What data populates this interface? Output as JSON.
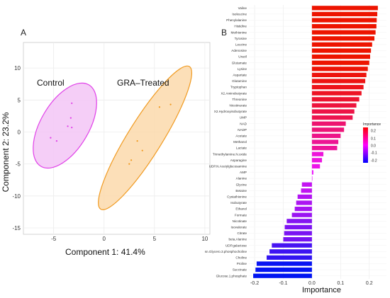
{
  "chart_data": [
    {
      "type": "scatter",
      "panel": "A",
      "xlabel": "Component 1: 41.4%",
      "ylabel": "Component 2: 23.2%",
      "xlim": [
        -8,
        10.5
      ],
      "ylim": [
        -16,
        14
      ],
      "xticks": [
        -5,
        0,
        5,
        10
      ],
      "yticks": [
        10,
        5,
        0,
        -5,
        -10,
        -15
      ],
      "grid": true,
      "groups": [
        {
          "name": "Control",
          "color": "#e040e8",
          "fill": "#f3c6f6",
          "points": [
            [
              -3.2,
              4.5
            ],
            [
              -3.3,
              2.2
            ],
            [
              -3.6,
              0.9
            ],
            [
              -3.2,
              0.7
            ],
            [
              -5.3,
              -0.9
            ],
            [
              -4.7,
              -1.4
            ]
          ]
        },
        {
          "name": "GRA–Treated",
          "color": "#f09a20",
          "fill": "#fbd9ab",
          "points": [
            [
              6.6,
              4.3
            ],
            [
              5.5,
              3.9
            ],
            [
              3.3,
              -1.4
            ],
            [
              3.8,
              -2.9
            ],
            [
              2.7,
              -4.4
            ],
            [
              2.5,
              -5.0
            ]
          ]
        }
      ]
    },
    {
      "type": "bar",
      "orientation": "horizontal",
      "panel": "B",
      "xlabel": "Importance",
      "xlim": [
        -0.22,
        0.26
      ],
      "xticks": [
        -0.2,
        -0.1,
        0.0,
        0.1,
        0.2
      ],
      "xtick_labels": [
        "-0.2",
        "-0.1",
        "0.0",
        "0.1",
        "0.2"
      ],
      "legend": {
        "title": "Importance",
        "labels": [
          "0.2",
          "0.1",
          "0.0",
          "-0.1",
          "-0.2"
        ],
        "placement": "right"
      },
      "categories": [
        "Valine",
        "Isoleucine",
        "Phenylalanine",
        "Histidine",
        "Methionine",
        "Tyrosine",
        "Leucine",
        "Adenosine",
        "Uracil",
        "Glutamate",
        "Lysine",
        "Aspartate",
        "Glutamine",
        "Tryptophan",
        "X2.Aminobutyrate",
        "Threonine",
        "Nicotinurate",
        "X2.Hydroxyisobutyrate",
        "UMP",
        "NAD",
        "NADP",
        "Acetate",
        "Methanol",
        "Lactate",
        "Trimethylamine.N.oxide",
        "Asparagine",
        "UDP.N.Acetylglucosamine",
        "AMP",
        "Alanine",
        "Glycine",
        "Betaine",
        "Cystathionine",
        "Isobutyrate",
        "Ethanol",
        "Formate",
        "Nicotinate",
        "Isovalerate",
        "Citrate",
        "beta.Alanine",
        "UDP.galactose",
        "sn.Glycero.3.phosphocholine",
        "Choline",
        "Proline",
        "Succinate",
        "Glucose.1.phosphate"
      ],
      "values": [
        0.23,
        0.228,
        0.226,
        0.225,
        0.222,
        0.218,
        0.21,
        0.206,
        0.203,
        0.2,
        0.195,
        0.19,
        0.186,
        0.18,
        0.173,
        0.165,
        0.155,
        0.148,
        0.142,
        0.118,
        0.112,
        0.1,
        0.092,
        0.088,
        0.04,
        0.035,
        0.028,
        0.005,
        0.0,
        -0.035,
        -0.038,
        -0.05,
        -0.055,
        -0.06,
        -0.07,
        -0.088,
        -0.095,
        -0.097,
        -0.1,
        -0.14,
        -0.148,
        -0.158,
        -0.193,
        -0.197,
        -0.205
      ]
    }
  ]
}
